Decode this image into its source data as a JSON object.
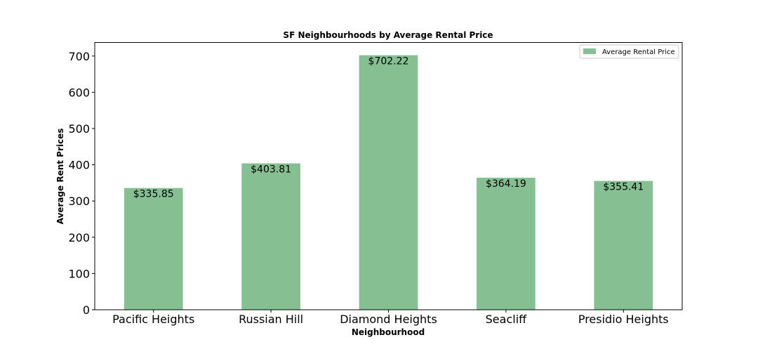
{
  "chart_data": {
    "type": "bar",
    "title": "SF Neighbourhoods by Average Rental Price",
    "xlabel": "Neighbourhood",
    "ylabel": "Average Rent Prices",
    "categories": [
      "Pacific Heights",
      "Russian Hill",
      "Diamond Heights",
      "Seacliff",
      "Presidio Heights"
    ],
    "series": [
      {
        "name": "Average Rental Price",
        "values": [
          335.85,
          403.81,
          702.22,
          364.19,
          355.41
        ],
        "color": "#86bf91"
      }
    ],
    "data_labels": [
      "$335.85",
      "$403.81",
      "$702.22",
      "$364.19",
      "$355.41"
    ],
    "yticks": [
      0,
      100,
      200,
      300,
      400,
      500,
      600,
      700
    ],
    "ylim": [
      0,
      737.33
    ],
    "grid": false,
    "legend_position": "top-right"
  }
}
